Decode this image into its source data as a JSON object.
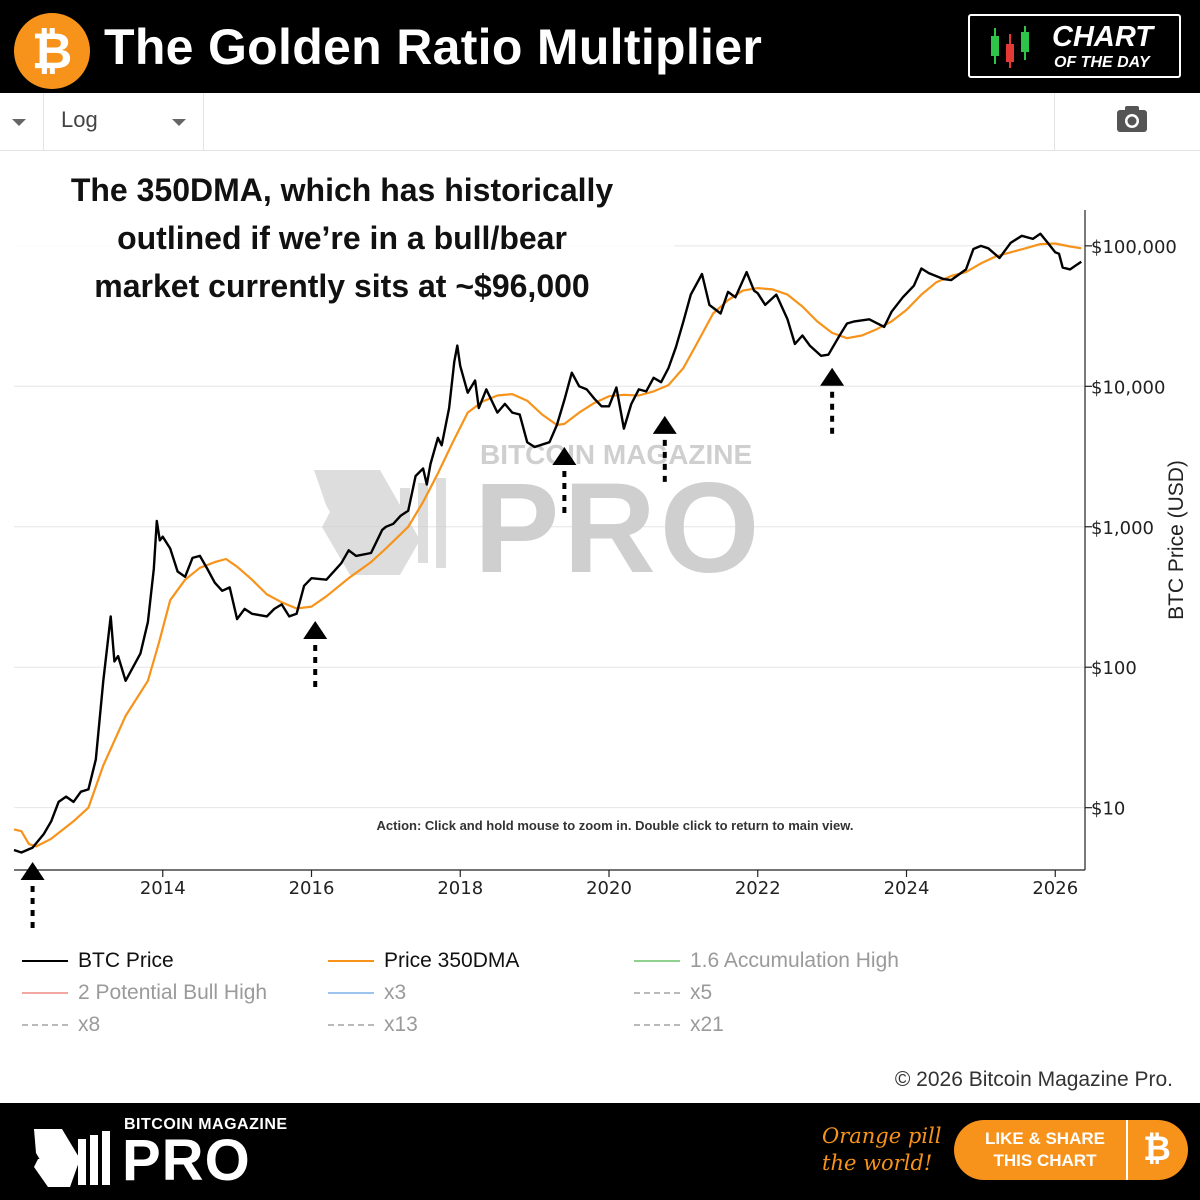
{
  "header": {
    "logo_glyph": "₿",
    "title": "The Golden Ratio Multiplier",
    "badge_line1": "CHART",
    "badge_line2": "OF THE DAY"
  },
  "toolbar": {
    "scale_value": "Log",
    "camera_icon": "camera-icon"
  },
  "annotation": {
    "lines": [
      "The 350DMA, which has historically",
      "outlined if we’re in a bull/bear",
      "market currently sits at ~$96,000"
    ]
  },
  "chart_data": {
    "type": "line",
    "x_tick_labels": [
      "2014",
      "2016",
      "2018",
      "2020",
      "2022",
      "2024",
      "2026"
    ],
    "x_tick_values": [
      2014,
      2016,
      2018,
      2020,
      2022,
      2024,
      2026
    ],
    "y_tick_labels": [
      "$10",
      "$100",
      "$1,000",
      "$10,000",
      "$100,000"
    ],
    "y_tick_values": [
      10,
      100,
      1000,
      10000,
      100000
    ],
    "ylabel": "BTC Price (USD)",
    "yscale": "log",
    "xlim": [
      2012.0,
      2026.4
    ],
    "ylim": [
      3.6,
      180000
    ],
    "grid": "horizontal",
    "interaction_hint": "Action: Click and hold mouse to zoom in.  Double click to return to main view.",
    "watermark_top": "BITCOIN MAGAZINE",
    "watermark_main": "PRO",
    "series": [
      {
        "name": "BTC Price",
        "color": "#000000",
        "points": [
          [
            2012.0,
            5.0
          ],
          [
            2012.1,
            4.8
          ],
          [
            2012.25,
            5.2
          ],
          [
            2012.4,
            6.5
          ],
          [
            2012.5,
            8.0
          ],
          [
            2012.6,
            11.0
          ],
          [
            2012.7,
            12.0
          ],
          [
            2012.8,
            11.0
          ],
          [
            2012.9,
            13.0
          ],
          [
            2013.0,
            13.5
          ],
          [
            2013.1,
            22
          ],
          [
            2013.2,
            80
          ],
          [
            2013.3,
            230
          ],
          [
            2013.35,
            110
          ],
          [
            2013.4,
            120
          ],
          [
            2013.5,
            80
          ],
          [
            2013.6,
            100
          ],
          [
            2013.7,
            125
          ],
          [
            2013.8,
            210
          ],
          [
            2013.88,
            500
          ],
          [
            2013.92,
            1100
          ],
          [
            2013.96,
            800
          ],
          [
            2014.0,
            850
          ],
          [
            2014.1,
            700
          ],
          [
            2014.2,
            480
          ],
          [
            2014.3,
            440
          ],
          [
            2014.4,
            600
          ],
          [
            2014.5,
            620
          ],
          [
            2014.6,
            500
          ],
          [
            2014.7,
            400
          ],
          [
            2014.8,
            350
          ],
          [
            2014.9,
            370
          ],
          [
            2015.0,
            220
          ],
          [
            2015.1,
            260
          ],
          [
            2015.2,
            240
          ],
          [
            2015.4,
            230
          ],
          [
            2015.5,
            260
          ],
          [
            2015.6,
            280
          ],
          [
            2015.7,
            230
          ],
          [
            2015.8,
            240
          ],
          [
            2015.9,
            380
          ],
          [
            2016.0,
            430
          ],
          [
            2016.2,
            420
          ],
          [
            2016.4,
            550
          ],
          [
            2016.5,
            680
          ],
          [
            2016.6,
            620
          ],
          [
            2016.8,
            650
          ],
          [
            2016.95,
            950
          ],
          [
            2017.0,
            1000
          ],
          [
            2017.1,
            1050
          ],
          [
            2017.2,
            1200
          ],
          [
            2017.3,
            1300
          ],
          [
            2017.4,
            2300
          ],
          [
            2017.5,
            2600
          ],
          [
            2017.55,
            2000
          ],
          [
            2017.6,
            2800
          ],
          [
            2017.7,
            4300
          ],
          [
            2017.75,
            3800
          ],
          [
            2017.85,
            7000
          ],
          [
            2017.92,
            15000
          ],
          [
            2017.96,
            19500
          ],
          [
            2018.0,
            14000
          ],
          [
            2018.1,
            9000
          ],
          [
            2018.2,
            11000
          ],
          [
            2018.25,
            7000
          ],
          [
            2018.35,
            9500
          ],
          [
            2018.5,
            6500
          ],
          [
            2018.6,
            7500
          ],
          [
            2018.7,
            6500
          ],
          [
            2018.8,
            6300
          ],
          [
            2018.9,
            4000
          ],
          [
            2019.0,
            3700
          ],
          [
            2019.2,
            4000
          ],
          [
            2019.3,
            5300
          ],
          [
            2019.4,
            8000
          ],
          [
            2019.5,
            12500
          ],
          [
            2019.6,
            10000
          ],
          [
            2019.7,
            9500
          ],
          [
            2019.8,
            8200
          ],
          [
            2019.9,
            7200
          ],
          [
            2020.0,
            7200
          ],
          [
            2020.1,
            9800
          ],
          [
            2020.2,
            5000
          ],
          [
            2020.3,
            7500
          ],
          [
            2020.4,
            9500
          ],
          [
            2020.5,
            9200
          ],
          [
            2020.6,
            11500
          ],
          [
            2020.7,
            10700
          ],
          [
            2020.8,
            13500
          ],
          [
            2020.9,
            19000
          ],
          [
            2021.0,
            29000
          ],
          [
            2021.1,
            45000
          ],
          [
            2021.25,
            63000
          ],
          [
            2021.35,
            38000
          ],
          [
            2021.5,
            33000
          ],
          [
            2021.6,
            47000
          ],
          [
            2021.7,
            43000
          ],
          [
            2021.85,
            65000
          ],
          [
            2021.95,
            48000
          ],
          [
            2022.0,
            46000
          ],
          [
            2022.1,
            38000
          ],
          [
            2022.25,
            45000
          ],
          [
            2022.4,
            30000
          ],
          [
            2022.5,
            20000
          ],
          [
            2022.6,
            23000
          ],
          [
            2022.7,
            19500
          ],
          [
            2022.85,
            16500
          ],
          [
            2022.95,
            16800
          ],
          [
            2023.1,
            23000
          ],
          [
            2023.2,
            28000
          ],
          [
            2023.3,
            29000
          ],
          [
            2023.5,
            30000
          ],
          [
            2023.7,
            26500
          ],
          [
            2023.8,
            34000
          ],
          [
            2023.95,
            43000
          ],
          [
            2024.1,
            52000
          ],
          [
            2024.2,
            69000
          ],
          [
            2024.3,
            64000
          ],
          [
            2024.5,
            58000
          ],
          [
            2024.6,
            57000
          ],
          [
            2024.8,
            68000
          ],
          [
            2024.9,
            95000
          ],
          [
            2025.0,
            100000
          ],
          [
            2025.1,
            96000
          ],
          [
            2025.25,
            82000
          ],
          [
            2025.4,
            105000
          ],
          [
            2025.55,
            118000
          ],
          [
            2025.7,
            112000
          ],
          [
            2025.8,
            122000
          ],
          [
            2025.9,
            105000
          ],
          [
            2026.0,
            90000
          ],
          [
            2026.05,
            88000
          ],
          [
            2026.1,
            70000
          ],
          [
            2026.2,
            68000
          ],
          [
            2026.3,
            74000
          ],
          [
            2026.35,
            77000
          ]
        ]
      },
      {
        "name": "Price 350DMA",
        "color": "#f7931a",
        "points": [
          [
            2012.0,
            7.0
          ],
          [
            2012.1,
            6.8
          ],
          [
            2012.2,
            5.5
          ],
          [
            2012.3,
            5.3
          ],
          [
            2012.5,
            6.0
          ],
          [
            2012.8,
            8.0
          ],
          [
            2013.0,
            10.0
          ],
          [
            2013.2,
            20
          ],
          [
            2013.5,
            45
          ],
          [
            2013.8,
            80
          ],
          [
            2013.95,
            150
          ],
          [
            2014.1,
            300
          ],
          [
            2014.3,
            420
          ],
          [
            2014.5,
            510
          ],
          [
            2014.7,
            560
          ],
          [
            2014.85,
            590
          ],
          [
            2015.0,
            520
          ],
          [
            2015.2,
            420
          ],
          [
            2015.4,
            330
          ],
          [
            2015.6,
            290
          ],
          [
            2015.8,
            262
          ],
          [
            2016.0,
            270
          ],
          [
            2016.2,
            320
          ],
          [
            2016.5,
            430
          ],
          [
            2016.8,
            560
          ],
          [
            2017.0,
            700
          ],
          [
            2017.3,
            1000
          ],
          [
            2017.5,
            1500
          ],
          [
            2017.7,
            2400
          ],
          [
            2017.9,
            4000
          ],
          [
            2018.1,
            6500
          ],
          [
            2018.3,
            7800
          ],
          [
            2018.5,
            8600
          ],
          [
            2018.7,
            8800
          ],
          [
            2018.9,
            7900
          ],
          [
            2019.1,
            6300
          ],
          [
            2019.3,
            5300
          ],
          [
            2019.4,
            5400
          ],
          [
            2019.6,
            6500
          ],
          [
            2019.8,
            7600
          ],
          [
            2020.0,
            8500
          ],
          [
            2020.2,
            8700
          ],
          [
            2020.4,
            8600
          ],
          [
            2020.6,
            9200
          ],
          [
            2020.8,
            10200
          ],
          [
            2021.0,
            13500
          ],
          [
            2021.2,
            21000
          ],
          [
            2021.4,
            33000
          ],
          [
            2021.6,
            41000
          ],
          [
            2021.8,
            48000
          ],
          [
            2022.0,
            50000
          ],
          [
            2022.2,
            49000
          ],
          [
            2022.4,
            45000
          ],
          [
            2022.6,
            37000
          ],
          [
            2022.8,
            29000
          ],
          [
            2023.0,
            24000
          ],
          [
            2023.2,
            22000
          ],
          [
            2023.4,
            23000
          ],
          [
            2023.6,
            25500
          ],
          [
            2023.8,
            29000
          ],
          [
            2024.0,
            35000
          ],
          [
            2024.2,
            45000
          ],
          [
            2024.4,
            55000
          ],
          [
            2024.6,
            61000
          ],
          [
            2024.8,
            65000
          ],
          [
            2025.0,
            75000
          ],
          [
            2025.2,
            84000
          ],
          [
            2025.4,
            90000
          ],
          [
            2025.6,
            96000
          ],
          [
            2025.8,
            103000
          ],
          [
            2026.0,
            104000
          ],
          [
            2026.2,
            99000
          ],
          [
            2026.35,
            96000
          ]
        ]
      }
    ],
    "markers": [
      {
        "x": 2012.25,
        "y": 5.0,
        "glyph": "up-arrow"
      },
      {
        "x": 2016.05,
        "y": 260,
        "glyph": "up-arrow"
      },
      {
        "x": 2019.4,
        "y": 4500,
        "glyph": "up-arrow"
      },
      {
        "x": 2020.75,
        "y": 7500,
        "glyph": "up-arrow"
      },
      {
        "x": 2023.0,
        "y": 16500,
        "glyph": "up-arrow"
      }
    ]
  },
  "legend": {
    "items": [
      {
        "label": "BTC Price",
        "color": "#000000",
        "style": "solid",
        "muted": false
      },
      {
        "label": "Price 350DMA",
        "color": "#f7931a",
        "style": "solid",
        "muted": false
      },
      {
        "label": "1.6 Accumulation High",
        "color": "#8fd18f",
        "style": "solid",
        "muted": true
      },
      {
        "label": "2 Potential Bull High",
        "color": "#f2a7a0",
        "style": "solid",
        "muted": true
      },
      {
        "label": "x3",
        "color": "#9cc4ef",
        "style": "solid",
        "muted": true
      },
      {
        "label": "x5",
        "color": "#b9b9b9",
        "style": "dashed",
        "muted": true
      },
      {
        "label": "x8",
        "color": "#b9b9b9",
        "style": "dashed",
        "muted": true
      },
      {
        "label": "x13",
        "color": "#b9b9b9",
        "style": "dashed",
        "muted": true
      },
      {
        "label": "x21",
        "color": "#b9b9b9",
        "style": "dashed",
        "muted": true
      }
    ]
  },
  "copyright": "© 2026 Bitcoin Magazine Pro.",
  "footer": {
    "brand_top": "BITCOIN MAGAZINE",
    "brand_main": "PRO",
    "tagline_line1": "Orange pill",
    "tagline_line2": "the world!",
    "share_line1": "LIKE & SHARE",
    "share_line2": "THIS CHART",
    "share_glyph": "₿"
  },
  "colors": {
    "brand_orange": "#f7931a",
    "grid": "#e6e6e6"
  }
}
